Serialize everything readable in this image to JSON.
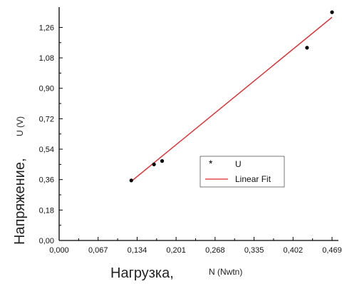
{
  "chart_data": {
    "type": "scatter",
    "title": "",
    "xlabel_main": "Нагрузка,",
    "xlabel_unit": "N (Nwtn)",
    "ylabel_main": "Напряжение,",
    "ylabel_unit": "U (V)",
    "xlim": [
      0.0,
      0.48
    ],
    "ylim": [
      0.0,
      1.38
    ],
    "x_ticks": [
      0.0,
      0.067,
      0.134,
      0.201,
      0.268,
      0.335,
      0.402,
      0.469
    ],
    "x_tick_labels": [
      "0,000",
      "0,067",
      "0,134",
      "0,201",
      "0,268",
      "0,335",
      "0,402",
      "0,469"
    ],
    "y_ticks": [
      0.0,
      0.18,
      0.36,
      0.54,
      0.72,
      0.9,
      1.08,
      1.26
    ],
    "y_tick_labels": [
      "0,00",
      "0,18",
      "0,36",
      "0,54",
      "0,72",
      "0,90",
      "1,08",
      "1,26"
    ],
    "grid": false,
    "legend_position": "center-right",
    "series": [
      {
        "name": "U",
        "kind": "scatter",
        "color": "#000000",
        "x": [
          0.124,
          0.163,
          0.177,
          0.426,
          0.469
        ],
        "y": [
          0.355,
          0.45,
          0.47,
          1.14,
          1.35
        ]
      },
      {
        "name": "Linear Fit",
        "kind": "line",
        "color": "#e8262a",
        "x": [
          0.124,
          0.469
        ],
        "y": [
          0.35,
          1.32
        ]
      }
    ]
  }
}
